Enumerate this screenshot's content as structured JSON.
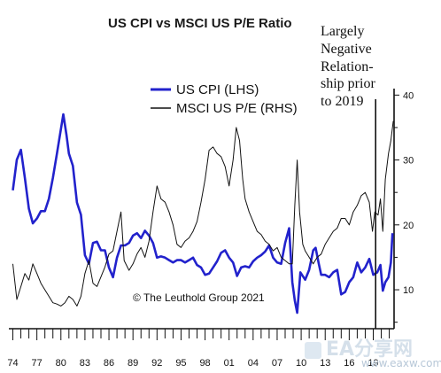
{
  "chart_data": {
    "type": "line",
    "title": "US CPI vs MSCI US P/E Ratio",
    "annotation": [
      "Largely",
      "Negative",
      "Relation-",
      "ship prior",
      "to 2019"
    ],
    "credit": "© The Leuthold Group 2021",
    "x_tick_labels": [
      "74",
      "77",
      "80",
      "83",
      "86",
      "89",
      "92",
      "95",
      "98",
      "01",
      "04",
      "07",
      "10",
      "13",
      "16",
      "19"
    ],
    "y_right_ticks": [
      10,
      20,
      30,
      40
    ],
    "y_right_lim": [
      4,
      41
    ],
    "y_left_lim": [
      -2.8,
      16.8
    ],
    "x_lim": [
      1973.5,
      2021.6
    ],
    "marker_x": 2019.3,
    "legend_position": "top-center",
    "grid": false,
    "series": [
      {
        "name": "US CPI (LHS)",
        "axis": "left",
        "color": "#2222cc",
        "points": [
          [
            1974.0,
            8.5
          ],
          [
            1974.5,
            11.0
          ],
          [
            1975.0,
            11.8
          ],
          [
            1975.5,
            9.5
          ],
          [
            1976.0,
            7.0
          ],
          [
            1976.5,
            5.8
          ],
          [
            1977.0,
            6.2
          ],
          [
            1977.5,
            6.8
          ],
          [
            1978.0,
            6.8
          ],
          [
            1978.5,
            7.8
          ],
          [
            1979.0,
            9.5
          ],
          [
            1979.5,
            11.5
          ],
          [
            1980.0,
            13.5
          ],
          [
            1980.3,
            14.7
          ],
          [
            1980.7,
            13.0
          ],
          [
            1981.0,
            11.5
          ],
          [
            1981.5,
            10.5
          ],
          [
            1982.0,
            7.5
          ],
          [
            1982.5,
            6.5
          ],
          [
            1983.0,
            3.2
          ],
          [
            1983.5,
            2.5
          ],
          [
            1984.0,
            4.2
          ],
          [
            1984.5,
            4.3
          ],
          [
            1985.0,
            3.6
          ],
          [
            1985.5,
            3.6
          ],
          [
            1986.0,
            2.2
          ],
          [
            1986.5,
            1.4
          ],
          [
            1987.0,
            3.0
          ],
          [
            1987.5,
            4.0
          ],
          [
            1988.0,
            4.0
          ],
          [
            1988.5,
            4.2
          ],
          [
            1989.0,
            4.8
          ],
          [
            1989.5,
            5.0
          ],
          [
            1990.0,
            4.6
          ],
          [
            1990.5,
            5.2
          ],
          [
            1991.0,
            4.8
          ],
          [
            1991.5,
            4.2
          ],
          [
            1992.0,
            3.0
          ],
          [
            1992.5,
            3.1
          ],
          [
            1993.0,
            3.0
          ],
          [
            1993.5,
            2.8
          ],
          [
            1994.0,
            2.6
          ],
          [
            1994.5,
            2.8
          ],
          [
            1995.0,
            2.8
          ],
          [
            1995.5,
            2.6
          ],
          [
            1996.0,
            2.8
          ],
          [
            1996.5,
            3.0
          ],
          [
            1997.0,
            2.4
          ],
          [
            1997.5,
            2.2
          ],
          [
            1998.0,
            1.6
          ],
          [
            1998.5,
            1.7
          ],
          [
            1999.0,
            2.2
          ],
          [
            1999.5,
            2.7
          ],
          [
            2000.0,
            3.4
          ],
          [
            2000.5,
            3.6
          ],
          [
            2001.0,
            3.0
          ],
          [
            2001.5,
            2.6
          ],
          [
            2002.0,
            1.5
          ],
          [
            2002.5,
            2.2
          ],
          [
            2003.0,
            2.3
          ],
          [
            2003.5,
            2.2
          ],
          [
            2004.0,
            2.7
          ],
          [
            2004.5,
            3.0
          ],
          [
            2005.0,
            3.2
          ],
          [
            2005.5,
            3.5
          ],
          [
            2006.0,
            4.0
          ],
          [
            2006.5,
            3.0
          ],
          [
            2007.0,
            2.6
          ],
          [
            2007.5,
            2.5
          ],
          [
            2008.0,
            4.2
          ],
          [
            2008.5,
            5.4
          ],
          [
            2008.9,
            1.0
          ],
          [
            2009.2,
            -0.5
          ],
          [
            2009.5,
            -1.5
          ],
          [
            2009.9,
            1.8
          ],
          [
            2010.5,
            1.2
          ],
          [
            2011.0,
            2.0
          ],
          [
            2011.5,
            3.6
          ],
          [
            2011.8,
            3.8
          ],
          [
            2012.2,
            2.5
          ],
          [
            2012.5,
            1.6
          ],
          [
            2013.0,
            1.6
          ],
          [
            2013.5,
            1.4
          ],
          [
            2014.0,
            1.8
          ],
          [
            2014.5,
            2.0
          ],
          [
            2015.0,
            0.0
          ],
          [
            2015.5,
            0.2
          ],
          [
            2016.0,
            1.0
          ],
          [
            2016.5,
            1.4
          ],
          [
            2017.0,
            2.6
          ],
          [
            2017.5,
            1.8
          ],
          [
            2018.0,
            2.2
          ],
          [
            2018.5,
            2.9
          ],
          [
            2019.0,
            1.6
          ],
          [
            2019.5,
            1.8
          ],
          [
            2019.9,
            2.4
          ],
          [
            2020.2,
            0.3
          ],
          [
            2020.5,
            1.0
          ],
          [
            2020.9,
            1.4
          ],
          [
            2021.2,
            2.6
          ],
          [
            2021.4,
            5.0
          ]
        ]
      },
      {
        "name": "MSCI US P/E (RHS)",
        "axis": "right",
        "color": "#111111",
        "points": [
          [
            1974.0,
            14.0
          ],
          [
            1974.5,
            8.5
          ],
          [
            1975.0,
            10.5
          ],
          [
            1975.5,
            12.5
          ],
          [
            1976.0,
            11.5
          ],
          [
            1976.5,
            14.0
          ],
          [
            1977.0,
            12.5
          ],
          [
            1977.5,
            11.0
          ],
          [
            1978.0,
            10.0
          ],
          [
            1978.5,
            9.0
          ],
          [
            1979.0,
            8.0
          ],
          [
            1979.5,
            7.8
          ],
          [
            1980.0,
            7.5
          ],
          [
            1980.5,
            8.0
          ],
          [
            1981.0,
            9.0
          ],
          [
            1981.5,
            8.5
          ],
          [
            1982.0,
            7.5
          ],
          [
            1982.5,
            9.0
          ],
          [
            1983.0,
            12.5
          ],
          [
            1983.5,
            14.5
          ],
          [
            1984.0,
            11.0
          ],
          [
            1984.5,
            10.5
          ],
          [
            1985.0,
            12.0
          ],
          [
            1985.5,
            13.5
          ],
          [
            1986.0,
            15.5
          ],
          [
            1986.5,
            16.0
          ],
          [
            1987.0,
            19.0
          ],
          [
            1987.5,
            22.0
          ],
          [
            1987.9,
            14.5
          ],
          [
            1988.5,
            13.0
          ],
          [
            1989.0,
            14.0
          ],
          [
            1989.5,
            15.5
          ],
          [
            1990.0,
            16.5
          ],
          [
            1990.5,
            15.0
          ],
          [
            1991.0,
            17.5
          ],
          [
            1991.5,
            22.0
          ],
          [
            1992.0,
            26.0
          ],
          [
            1992.5,
            24.0
          ],
          [
            1993.0,
            23.5
          ],
          [
            1993.5,
            22.0
          ],
          [
            1994.0,
            20.0
          ],
          [
            1994.5,
            17.0
          ],
          [
            1995.0,
            16.5
          ],
          [
            1995.5,
            17.5
          ],
          [
            1996.0,
            18.0
          ],
          [
            1996.5,
            19.0
          ],
          [
            1997.0,
            20.5
          ],
          [
            1997.5,
            23.5
          ],
          [
            1998.0,
            27.0
          ],
          [
            1998.5,
            31.5
          ],
          [
            1999.0,
            32.0
          ],
          [
            1999.5,
            31.0
          ],
          [
            2000.0,
            30.5
          ],
          [
            2000.5,
            29.0
          ],
          [
            2001.0,
            26.0
          ],
          [
            2001.5,
            30.0
          ],
          [
            2001.9,
            35.0
          ],
          [
            2002.3,
            33.0
          ],
          [
            2002.7,
            27.0
          ],
          [
            2003.0,
            24.0
          ],
          [
            2003.5,
            22.0
          ],
          [
            2004.0,
            20.5
          ],
          [
            2004.5,
            19.0
          ],
          [
            2005.0,
            18.5
          ],
          [
            2005.5,
            17.5
          ],
          [
            2006.0,
            17.0
          ],
          [
            2006.5,
            16.0
          ],
          [
            2007.0,
            16.5
          ],
          [
            2007.5,
            15.0
          ],
          [
            2008.0,
            14.5
          ],
          [
            2008.5,
            14.0
          ],
          [
            2008.9,
            14.0
          ],
          [
            2009.2,
            23.0
          ],
          [
            2009.5,
            30.0
          ],
          [
            2009.8,
            22.0
          ],
          [
            2010.2,
            17.0
          ],
          [
            2010.5,
            16.0
          ],
          [
            2011.0,
            15.0
          ],
          [
            2011.5,
            14.0
          ],
          [
            2012.0,
            15.0
          ],
          [
            2012.5,
            15.5
          ],
          [
            2013.0,
            17.0
          ],
          [
            2013.5,
            18.0
          ],
          [
            2014.0,
            19.0
          ],
          [
            2014.5,
            19.5
          ],
          [
            2015.0,
            21.0
          ],
          [
            2015.5,
            21.0
          ],
          [
            2016.0,
            20.0
          ],
          [
            2016.5,
            22.0
          ],
          [
            2017.0,
            23.0
          ],
          [
            2017.5,
            24.5
          ],
          [
            2018.0,
            25.0
          ],
          [
            2018.5,
            23.5
          ],
          [
            2018.9,
            19.0
          ],
          [
            2019.2,
            22.0
          ],
          [
            2019.6,
            21.5
          ],
          [
            2019.9,
            24.0
          ],
          [
            2020.2,
            19.0
          ],
          [
            2020.5,
            27.0
          ],
          [
            2020.9,
            31.0
          ],
          [
            2021.2,
            33.0
          ],
          [
            2021.5,
            36.0
          ]
        ]
      }
    ]
  },
  "watermark": {
    "brand": "EA分享网",
    "url": "www.eaxw.com"
  }
}
